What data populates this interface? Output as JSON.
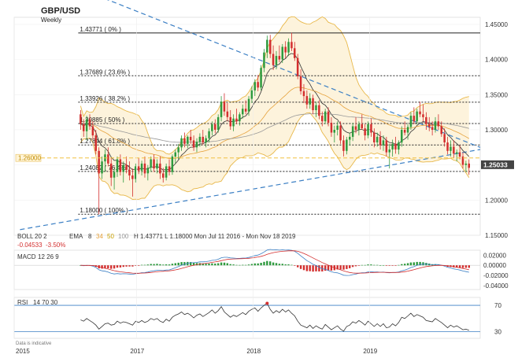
{
  "chart_data": {
    "type": "candlestick",
    "title": "GBP/USD",
    "subtitle": "Weekly",
    "note": "Data is indicative",
    "price_axis": {
      "ticks": [
        "1.45000",
        "1.40000",
        "1.35000",
        "1.30000",
        "1.25000",
        "1.20000",
        "1.15000"
      ],
      "ylim": [
        1.15,
        1.46
      ],
      "current_price": "1.25033",
      "current_price_value": 1.25033,
      "left_marker": "1.26000",
      "left_marker_value": 1.26
    },
    "time_axis": {
      "labels": [
        "2015",
        "2017",
        "2018",
        "2019"
      ],
      "label_values": [
        2015.95,
        2017.0,
        2018.0,
        2019.0
      ],
      "range": [
        2015.95,
        2019.95
      ]
    },
    "fib_levels": [
      {
        "label": "1.43771 ( 0% )",
        "value": 1.43771,
        "style": "solid"
      },
      {
        "label": "1.37689 ( 23.6% )",
        "value": 1.37689,
        "style": "dotted"
      },
      {
        "label": "1.33926 ( 38.2% )",
        "value": 1.33926,
        "style": "dotted"
      },
      {
        "label": "1.30885 ( 50% )",
        "value": 1.30885,
        "style": "dotted"
      },
      {
        "label": "1.27844 ( 61.8% )",
        "value": 1.27844,
        "style": "dotted"
      },
      {
        "label": "1.24082 ( 76.4% )",
        "value": 1.24082,
        "style": "dotted"
      },
      {
        "label": "1.18000 ( 100% )",
        "value": 1.18,
        "style": "dotted"
      }
    ],
    "candles_weekly_approx": [
      [
        1.322,
        1.328,
        1.3,
        1.308
      ],
      [
        1.308,
        1.315,
        1.29,
        1.298
      ],
      [
        1.298,
        1.32,
        1.285,
        1.315
      ],
      [
        1.315,
        1.322,
        1.3,
        1.305
      ],
      [
        1.305,
        1.312,
        1.286,
        1.292
      ],
      [
        1.292,
        1.3,
        1.265,
        1.27
      ],
      [
        1.27,
        1.275,
        1.18,
        1.238
      ],
      [
        1.238,
        1.262,
        1.23,
        1.255
      ],
      [
        1.255,
        1.272,
        1.24,
        1.265
      ],
      [
        1.265,
        1.275,
        1.248,
        1.252
      ],
      [
        1.252,
        1.26,
        1.22,
        1.232
      ],
      [
        1.232,
        1.245,
        1.215,
        1.24
      ],
      [
        1.24,
        1.262,
        1.233,
        1.258
      ],
      [
        1.258,
        1.265,
        1.235,
        1.24
      ],
      [
        1.24,
        1.255,
        1.225,
        1.25
      ],
      [
        1.25,
        1.262,
        1.238,
        1.243
      ],
      [
        1.243,
        1.255,
        1.228,
        1.235
      ],
      [
        1.235,
        1.245,
        1.205,
        1.23
      ],
      [
        1.23,
        1.252,
        1.225,
        1.248
      ],
      [
        1.248,
        1.26,
        1.237,
        1.242
      ],
      [
        1.242,
        1.256,
        1.235,
        1.252
      ],
      [
        1.252,
        1.262,
        1.232,
        1.238
      ],
      [
        1.238,
        1.25,
        1.228,
        1.246
      ],
      [
        1.246,
        1.262,
        1.24,
        1.258
      ],
      [
        1.258,
        1.265,
        1.24,
        1.245
      ],
      [
        1.245,
        1.258,
        1.238,
        1.252
      ],
      [
        1.252,
        1.262,
        1.23,
        1.238
      ],
      [
        1.238,
        1.246,
        1.225,
        1.232
      ],
      [
        1.232,
        1.252,
        1.228,
        1.248
      ],
      [
        1.248,
        1.258,
        1.235,
        1.24
      ],
      [
        1.24,
        1.265,
        1.236,
        1.262
      ],
      [
        1.262,
        1.272,
        1.252,
        1.268
      ],
      [
        1.268,
        1.28,
        1.258,
        1.275
      ],
      [
        1.275,
        1.292,
        1.27,
        1.288
      ],
      [
        1.288,
        1.296,
        1.275,
        1.28
      ],
      [
        1.28,
        1.292,
        1.274,
        1.29
      ],
      [
        1.29,
        1.3,
        1.28,
        1.285
      ],
      [
        1.285,
        1.292,
        1.27,
        1.275
      ],
      [
        1.275,
        1.288,
        1.268,
        1.283
      ],
      [
        1.283,
        1.295,
        1.276,
        1.29
      ],
      [
        1.29,
        1.3,
        1.279,
        1.282
      ],
      [
        1.282,
        1.292,
        1.275,
        1.288
      ],
      [
        1.288,
        1.302,
        1.282,
        1.298
      ],
      [
        1.298,
        1.312,
        1.292,
        1.308
      ],
      [
        1.308,
        1.315,
        1.295,
        1.3
      ],
      [
        1.3,
        1.322,
        1.296,
        1.318
      ],
      [
        1.318,
        1.348,
        1.312,
        1.34
      ],
      [
        1.34,
        1.352,
        1.32,
        1.326
      ],
      [
        1.326,
        1.338,
        1.312,
        1.318
      ],
      [
        1.318,
        1.328,
        1.3,
        1.305
      ],
      [
        1.305,
        1.322,
        1.298,
        1.316
      ],
      [
        1.316,
        1.33,
        1.308,
        1.312
      ],
      [
        1.312,
        1.325,
        1.306,
        1.322
      ],
      [
        1.322,
        1.336,
        1.316,
        1.33
      ],
      [
        1.33,
        1.342,
        1.322,
        1.326
      ],
      [
        1.326,
        1.348,
        1.32,
        1.344
      ],
      [
        1.344,
        1.362,
        1.338,
        1.356
      ],
      [
        1.356,
        1.372,
        1.348,
        1.368
      ],
      [
        1.368,
        1.378,
        1.355,
        1.36
      ],
      [
        1.36,
        1.392,
        1.356,
        1.388
      ],
      [
        1.388,
        1.415,
        1.382,
        1.41
      ],
      [
        1.41,
        1.434,
        1.402,
        1.428
      ],
      [
        1.428,
        1.435,
        1.402,
        1.408
      ],
      [
        1.408,
        1.42,
        1.385,
        1.392
      ],
      [
        1.392,
        1.412,
        1.386,
        1.405
      ],
      [
        1.405,
        1.42,
        1.396,
        1.4
      ],
      [
        1.4,
        1.422,
        1.395,
        1.418
      ],
      [
        1.418,
        1.426,
        1.402,
        1.41
      ],
      [
        1.41,
        1.43,
        1.405,
        1.425
      ],
      [
        1.425,
        1.438,
        1.412,
        1.416
      ],
      [
        1.416,
        1.425,
        1.398,
        1.402
      ],
      [
        1.402,
        1.408,
        1.372,
        1.376
      ],
      [
        1.376,
        1.386,
        1.35,
        1.355
      ],
      [
        1.355,
        1.365,
        1.338,
        1.348
      ],
      [
        1.348,
        1.356,
        1.33,
        1.336
      ],
      [
        1.336,
        1.352,
        1.33,
        1.345
      ],
      [
        1.345,
        1.35,
        1.322,
        1.328
      ],
      [
        1.328,
        1.34,
        1.318,
        1.335
      ],
      [
        1.335,
        1.342,
        1.315,
        1.32
      ],
      [
        1.32,
        1.326,
        1.305,
        1.312
      ],
      [
        1.312,
        1.33,
        1.308,
        1.326
      ],
      [
        1.326,
        1.332,
        1.305,
        1.31
      ],
      [
        1.31,
        1.318,
        1.29,
        1.296
      ],
      [
        1.296,
        1.306,
        1.282,
        1.3
      ],
      [
        1.3,
        1.312,
        1.292,
        1.306
      ],
      [
        1.306,
        1.312,
        1.28,
        1.285
      ],
      [
        1.285,
        1.292,
        1.262,
        1.27
      ],
      [
        1.27,
        1.29,
        1.265,
        1.286
      ],
      [
        1.286,
        1.296,
        1.278,
        1.29
      ],
      [
        1.29,
        1.31,
        1.284,
        1.305
      ],
      [
        1.305,
        1.318,
        1.295,
        1.3
      ],
      [
        1.3,
        1.312,
        1.292,
        1.308
      ],
      [
        1.308,
        1.322,
        1.3,
        1.302
      ],
      [
        1.302,
        1.308,
        1.285,
        1.292
      ],
      [
        1.292,
        1.312,
        1.288,
        1.308
      ],
      [
        1.308,
        1.316,
        1.29,
        1.296
      ],
      [
        1.296,
        1.302,
        1.275,
        1.282
      ],
      [
        1.282,
        1.296,
        1.276,
        1.29
      ],
      [
        1.29,
        1.298,
        1.272,
        1.278
      ],
      [
        1.278,
        1.292,
        1.27,
        1.285
      ],
      [
        1.285,
        1.29,
        1.262,
        1.268
      ],
      [
        1.268,
        1.28,
        1.245,
        1.272
      ],
      [
        1.272,
        1.286,
        1.262,
        1.28
      ],
      [
        1.28,
        1.29,
        1.266,
        1.272
      ],
      [
        1.272,
        1.285,
        1.265,
        1.282
      ],
      [
        1.282,
        1.305,
        1.276,
        1.3
      ],
      [
        1.3,
        1.312,
        1.292,
        1.296
      ],
      [
        1.296,
        1.308,
        1.286,
        1.304
      ],
      [
        1.304,
        1.325,
        1.3,
        1.32
      ],
      [
        1.32,
        1.332,
        1.308,
        1.312
      ],
      [
        1.312,
        1.33,
        1.308,
        1.326
      ],
      [
        1.326,
        1.34,
        1.318,
        1.322
      ],
      [
        1.322,
        1.336,
        1.312,
        1.318
      ],
      [
        1.318,
        1.325,
        1.3,
        1.308
      ],
      [
        1.308,
        1.318,
        1.298,
        1.304
      ],
      [
        1.304,
        1.312,
        1.292,
        1.3
      ],
      [
        1.3,
        1.318,
        1.296,
        1.312
      ],
      [
        1.312,
        1.322,
        1.3,
        1.305
      ],
      [
        1.305,
        1.312,
        1.29,
        1.294
      ],
      [
        1.294,
        1.302,
        1.276,
        1.282
      ],
      [
        1.282,
        1.29,
        1.265,
        1.27
      ],
      [
        1.27,
        1.285,
        1.262,
        1.276
      ],
      [
        1.276,
        1.285,
        1.26,
        1.266
      ],
      [
        1.266,
        1.272,
        1.255,
        1.268
      ],
      [
        1.268,
        1.278,
        1.258,
        1.262
      ],
      [
        1.262,
        1.268,
        1.245,
        1.25
      ],
      [
        1.25,
        1.256,
        1.24,
        1.252
      ],
      [
        1.252,
        1.258,
        1.236,
        1.246
      ]
    ],
    "moving_averages": [
      {
        "name": "EMA 8",
        "color": "#333333"
      },
      {
        "name": "EMA 34",
        "color": "#e6a23c"
      },
      {
        "name": "EMA 100",
        "color": "#999999"
      }
    ],
    "indicators": {
      "boll": {
        "label": "BOLL",
        "params": "20  2",
        "color": "#e8b84a"
      },
      "ema": {
        "label": "EMA",
        "params": [
          "8",
          "34",
          "50",
          "100"
        ],
        "param_colors": [
          "#333333",
          "#e6a23c",
          "#c8a000",
          "#999999"
        ]
      },
      "range_text": "H 1.43771  L 1.18000   Mon Jul 11 2016 - Mon Nov 18 2019",
      "change": {
        "absolute": "-0.04533",
        "percent": "-3.50%"
      },
      "macd": {
        "label": "MACD",
        "params": "12  26  9",
        "ticks": [
          "0.02000",
          "0.00000",
          "-0.02000",
          "-0.04000"
        ],
        "ylim": [
          -0.048,
          0.03
        ]
      },
      "rsi": {
        "label": "RSI",
        "params": "14  70  30",
        "levels": [
          70,
          30
        ],
        "level_labels": [
          "70",
          "30"
        ],
        "ylim": [
          20,
          82
        ],
        "values": [
          48,
          46,
          50,
          47,
          44,
          40,
          34,
          38,
          42,
          43,
          40,
          41,
          46,
          43,
          45,
          44,
          42,
          40,
          46,
          44,
          47,
          44,
          46,
          50,
          48,
          50,
          46,
          44,
          49,
          46,
          52,
          55,
          57,
          60,
          56,
          58,
          55,
          51,
          55,
          57,
          53,
          56,
          59,
          63,
          58,
          62,
          68,
          60,
          56,
          52,
          55,
          53,
          56,
          59,
          56,
          61,
          64,
          66,
          61,
          66,
          70,
          73,
          64,
          58,
          62,
          59,
          64,
          60,
          63,
          58,
          54,
          46,
          40,
          38,
          36,
          40,
          35,
          39,
          36,
          34,
          41,
          37,
          33,
          36,
          39,
          34,
          31,
          38,
          40,
          45,
          43,
          47,
          44,
          40,
          46,
          42,
          38,
          42,
          38,
          42,
          36,
          37,
          42,
          39,
          44,
          52,
          50,
          54,
          58,
          53,
          56,
          54,
          52,
          47,
          46,
          45,
          50,
          47,
          44,
          40,
          36,
          40,
          37,
          39,
          36,
          33,
          34,
          32
        ]
      }
    },
    "trendlines": [
      {
        "name": "descending-resistance",
        "from": [
          2016.6,
          1.495
        ],
        "to": [
          2019.95,
          1.275
        ]
      },
      {
        "name": "ascending-support",
        "from": [
          2016.0,
          1.158
        ],
        "to": [
          2019.95,
          1.272
        ]
      }
    ]
  }
}
